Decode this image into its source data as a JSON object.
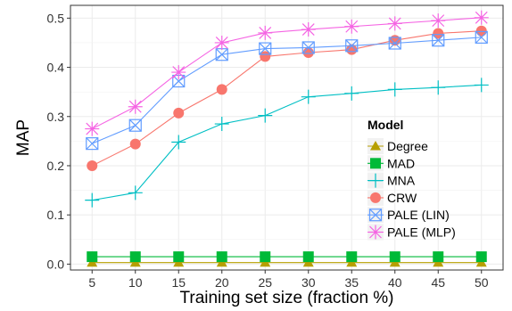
{
  "chart_data": {
    "type": "line",
    "xlabel": "Training set size (fraction %)",
    "ylabel": "MAP",
    "x": [
      5,
      10,
      15,
      20,
      25,
      30,
      35,
      40,
      45,
      50
    ],
    "xlim": [
      2.5,
      52.5
    ],
    "ylim": [
      -0.012,
      0.526
    ],
    "yticks": [
      0.0,
      0.1,
      0.2,
      0.3,
      0.4,
      0.5
    ],
    "ytick_labels": [
      "0.0",
      "0.1",
      "0.2",
      "0.3",
      "0.4",
      "0.5"
    ],
    "xtick_labels": [
      "5",
      "10",
      "15",
      "20",
      "25",
      "30",
      "35",
      "40",
      "45",
      "50"
    ],
    "grid": true,
    "legend": {
      "title": "Model",
      "placement": "right"
    },
    "series": [
      {
        "name": "Degree",
        "marker": "triangle",
        "color": "#B79F00",
        "values": [
          0.003,
          0.003,
          0.003,
          0.003,
          0.003,
          0.003,
          0.003,
          0.003,
          0.003,
          0.003
        ]
      },
      {
        "name": "MAD",
        "marker": "square",
        "color": "#00BA38",
        "values": [
          0.015,
          0.015,
          0.015,
          0.015,
          0.015,
          0.015,
          0.015,
          0.015,
          0.015,
          0.015
        ]
      },
      {
        "name": "MNA",
        "marker": "plus",
        "color": "#00BFC4",
        "values": [
          0.13,
          0.145,
          0.248,
          0.285,
          0.302,
          0.34,
          0.347,
          0.355,
          0.359,
          0.364
        ]
      },
      {
        "name": "CRW",
        "marker": "circle",
        "color": "#F8766D",
        "values": [
          0.2,
          0.244,
          0.307,
          0.355,
          0.422,
          0.43,
          0.436,
          0.455,
          0.469,
          0.474
        ]
      },
      {
        "name": "PALE (LIN)",
        "marker": "boxcross",
        "color": "#619CFF",
        "values": [
          0.245,
          0.282,
          0.372,
          0.426,
          0.438,
          0.44,
          0.444,
          0.449,
          0.455,
          0.461
        ]
      },
      {
        "name": "PALE (MLP)",
        "marker": "asterisk",
        "color": "#F564E3",
        "values": [
          0.275,
          0.32,
          0.39,
          0.45,
          0.47,
          0.477,
          0.483,
          0.489,
          0.495,
          0.501
        ]
      }
    ]
  }
}
